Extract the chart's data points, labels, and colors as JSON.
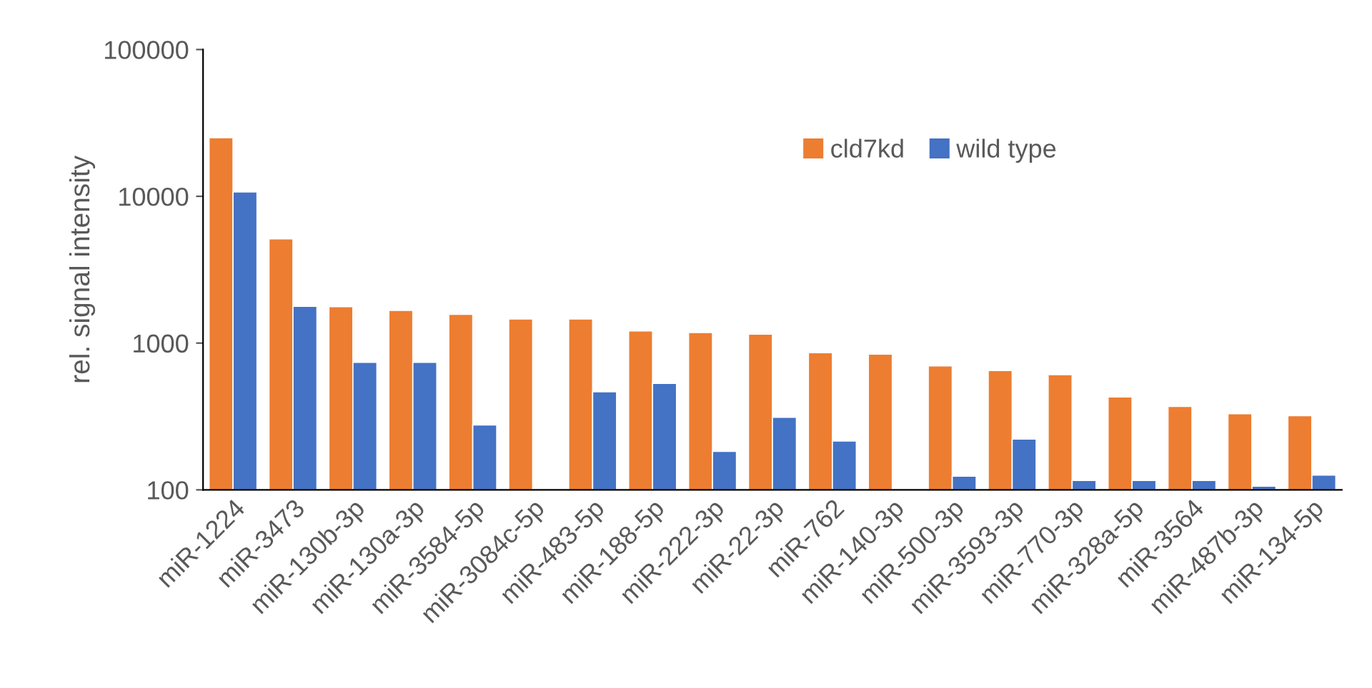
{
  "chart_data": {
    "type": "bar",
    "ylabel": "rel. signal intensity",
    "log": true,
    "categories": [
      "miR-1224",
      "miR-3473",
      "miR-130b-3p",
      "miR-130a-3p",
      "miR-3584-5p",
      "miR-3084c-5p",
      "miR-483-5p",
      "miR-188-5p",
      "miR-222-3p",
      "miR-22-3p",
      "miR-762",
      "miR-140-3p",
      "miR-500-3p",
      "miR-3593-3p",
      "miR-770-3p",
      "miR-328a-5p",
      "miR-3564",
      "miR-487b-3p",
      "miR-134-5p"
    ],
    "series": [
      {
        "name": "cld7kd",
        "color": "#ed7d31",
        "values": [
          25100,
          5130,
          1770,
          1670,
          1570,
          1460,
          1460,
          1210,
          1180,
          1150,
          860,
          840,
          700,
          650,
          610,
          430,
          370,
          330,
          320
        ]
      },
      {
        "name": "wild type",
        "color": "#4472c4",
        "values": [
          10700,
          1780,
          740,
          740,
          277,
          null,
          466,
          532,
          183,
          312,
          215,
          null,
          124,
          222,
          116,
          116,
          116,
          106,
          126
        ]
      }
    ],
    "ylim": [
      100,
      100000
    ],
    "yticks": [
      100,
      1000,
      10000,
      100000
    ],
    "grid": false,
    "legend": "top right"
  }
}
